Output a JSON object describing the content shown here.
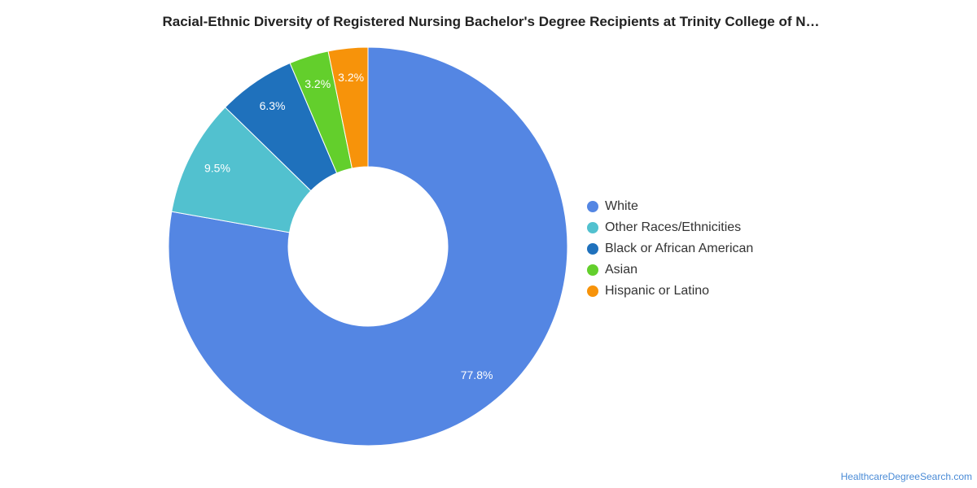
{
  "chart_data": {
    "type": "pie",
    "donut": true,
    "title": "Racial-Ethnic Diversity of Registered Nursing Bachelor's Degree Recipients at Trinity College of N…",
    "categories": [
      "White",
      "Other Races/Ethnicities",
      "Black or African American",
      "Asian",
      "Hispanic or Latino"
    ],
    "values": [
      77.8,
      9.5,
      6.3,
      3.2,
      3.2
    ],
    "labels": [
      "77.8%",
      "9.5%",
      "6.3%",
      "3.2%",
      "3.2%"
    ],
    "colors": [
      "#5486e3",
      "#52c1cf",
      "#1f71bc",
      "#63cf2c",
      "#f7930a"
    ],
    "legend_position": "right"
  },
  "source": "HealthcareDegreeSearch.com"
}
